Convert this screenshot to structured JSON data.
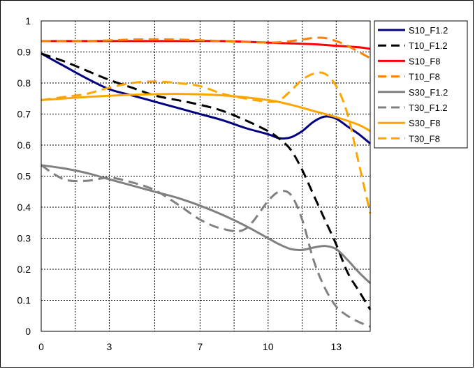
{
  "chart_data": {
    "type": "line",
    "title": "",
    "xlabel": "",
    "ylabel": "",
    "xlim": [
      0,
      14.5
    ],
    "ylim": [
      0,
      1
    ],
    "x_ticks": [
      0,
      3,
      7,
      10,
      13
    ],
    "y_ticks": [
      0,
      0.1,
      0.2,
      0.3,
      0.4,
      0.5,
      0.6,
      0.7,
      0.8,
      0.9,
      1
    ],
    "y_tick_labels": [
      "0",
      "0.1",
      "0.2",
      "0.3",
      "0.4",
      "0.5",
      "0.6",
      "0.7",
      "0.8",
      "0.9",
      "1"
    ],
    "grid": true,
    "legend_position": "right",
    "series": [
      {
        "name": "S10_F1.2",
        "color": "#000080",
        "dash": "solid",
        "x": [
          0,
          1,
          2,
          3,
          4,
          5,
          6,
          7,
          8,
          9,
          10,
          10.5,
          11,
          11.5,
          12,
          12.5,
          13,
          13.5,
          14,
          14.5
        ],
        "y": [
          0.895,
          0.855,
          0.815,
          0.78,
          0.76,
          0.74,
          0.72,
          0.7,
          0.68,
          0.655,
          0.635,
          0.622,
          0.625,
          0.645,
          0.675,
          0.692,
          0.685,
          0.66,
          0.635,
          0.605
        ]
      },
      {
        "name": "T10_F1.2",
        "color": "#000000",
        "dash": "dashed",
        "x": [
          0,
          1,
          2,
          3,
          4,
          5,
          6,
          7,
          8,
          9,
          10,
          10.5,
          11,
          11.5,
          12,
          12.5,
          13,
          13.5,
          14,
          14.5
        ],
        "y": [
          0.895,
          0.87,
          0.84,
          0.81,
          0.785,
          0.76,
          0.745,
          0.73,
          0.71,
          0.68,
          0.645,
          0.62,
          0.585,
          0.52,
          0.44,
          0.36,
          0.28,
          0.19,
          0.13,
          0.07
        ]
      },
      {
        "name": "S10_F8",
        "color": "#ff0000",
        "dash": "solid",
        "x": [
          0,
          2,
          4,
          6,
          8,
          10,
          12,
          13,
          14,
          14.5
        ],
        "y": [
          0.935,
          0.935,
          0.935,
          0.935,
          0.935,
          0.93,
          0.925,
          0.92,
          0.915,
          0.91
        ]
      },
      {
        "name": "T10_F8",
        "color": "#ff8000",
        "dash": "dashed",
        "x": [
          0,
          2,
          4,
          6,
          8,
          10,
          11,
          11.5,
          12,
          12.5,
          13,
          13.5,
          14,
          14.5
        ],
        "y": [
          0.935,
          0.935,
          0.94,
          0.94,
          0.935,
          0.93,
          0.935,
          0.94,
          0.945,
          0.945,
          0.935,
          0.92,
          0.9,
          0.88
        ]
      },
      {
        "name": "S30_F1.2",
        "color": "#808080",
        "dash": "solid",
        "x": [
          0,
          1,
          2,
          3,
          4,
          5,
          6,
          7,
          8,
          9,
          10,
          10.5,
          11,
          11.5,
          12,
          12.5,
          13,
          13.5,
          14,
          14.5
        ],
        "y": [
          0.535,
          0.525,
          0.51,
          0.49,
          0.47,
          0.45,
          0.43,
          0.405,
          0.375,
          0.34,
          0.3,
          0.28,
          0.265,
          0.262,
          0.27,
          0.275,
          0.265,
          0.23,
          0.19,
          0.155
        ]
      },
      {
        "name": "T30_F1.2",
        "color": "#808080",
        "dash": "dashed",
        "x": [
          0,
          1,
          2,
          3,
          4,
          5,
          6,
          7,
          8,
          9,
          10,
          10.5,
          11,
          11.5,
          12,
          12.5,
          13,
          13.5,
          14,
          14.5
        ],
        "y": [
          0.535,
          0.49,
          0.485,
          0.495,
          0.48,
          0.455,
          0.41,
          0.36,
          0.33,
          0.33,
          0.42,
          0.45,
          0.44,
          0.36,
          0.23,
          0.14,
          0.08,
          0.05,
          0.03,
          0.015
        ]
      },
      {
        "name": "S30_F8",
        "color": "#ffa500",
        "dash": "solid",
        "x": [
          0,
          2,
          4,
          6,
          8,
          10,
          11,
          12,
          13,
          14,
          14.5
        ],
        "y": [
          0.745,
          0.755,
          0.762,
          0.765,
          0.76,
          0.745,
          0.73,
          0.71,
          0.69,
          0.665,
          0.645
        ]
      },
      {
        "name": "T30_F8",
        "color": "#ffa500",
        "dash": "dashed",
        "x": [
          0,
          1,
          2,
          3,
          4,
          5,
          6,
          7,
          8,
          9,
          10,
          10.5,
          11,
          11.5,
          12,
          12.5,
          13,
          13.5,
          14,
          14.5
        ],
        "y": [
          0.745,
          0.755,
          0.765,
          0.785,
          0.8,
          0.805,
          0.8,
          0.79,
          0.765,
          0.75,
          0.74,
          0.745,
          0.775,
          0.81,
          0.83,
          0.83,
          0.79,
          0.7,
          0.54,
          0.38
        ]
      }
    ]
  }
}
